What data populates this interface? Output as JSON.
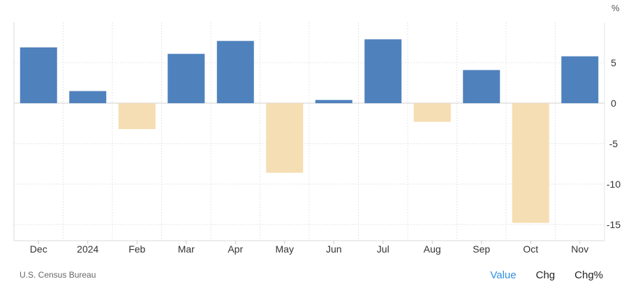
{
  "chart_data": {
    "type": "bar",
    "categories": [
      "Dec",
      "2024",
      "Feb",
      "Mar",
      "Apr",
      "May",
      "Jun",
      "Jul",
      "Aug",
      "Sep",
      "Oct",
      "Nov"
    ],
    "values": [
      6.9,
      1.5,
      -3.2,
      6.1,
      7.7,
      -8.6,
      0.4,
      7.9,
      -2.3,
      4.1,
      -14.8,
      5.8
    ],
    "unit": "%",
    "ylim": [
      -17,
      10
    ],
    "yticks": [
      -15,
      -10,
      -5,
      0,
      5
    ],
    "grid": true,
    "colors": {
      "positive": "#4f81bd",
      "negative": "#f5deb3",
      "grid": "#e4e4e4"
    }
  },
  "footer": {
    "source": "U.S. Census Bureau",
    "tabs": [
      "Value",
      "Chg",
      "Chg%"
    ],
    "active_tab": "Value"
  }
}
